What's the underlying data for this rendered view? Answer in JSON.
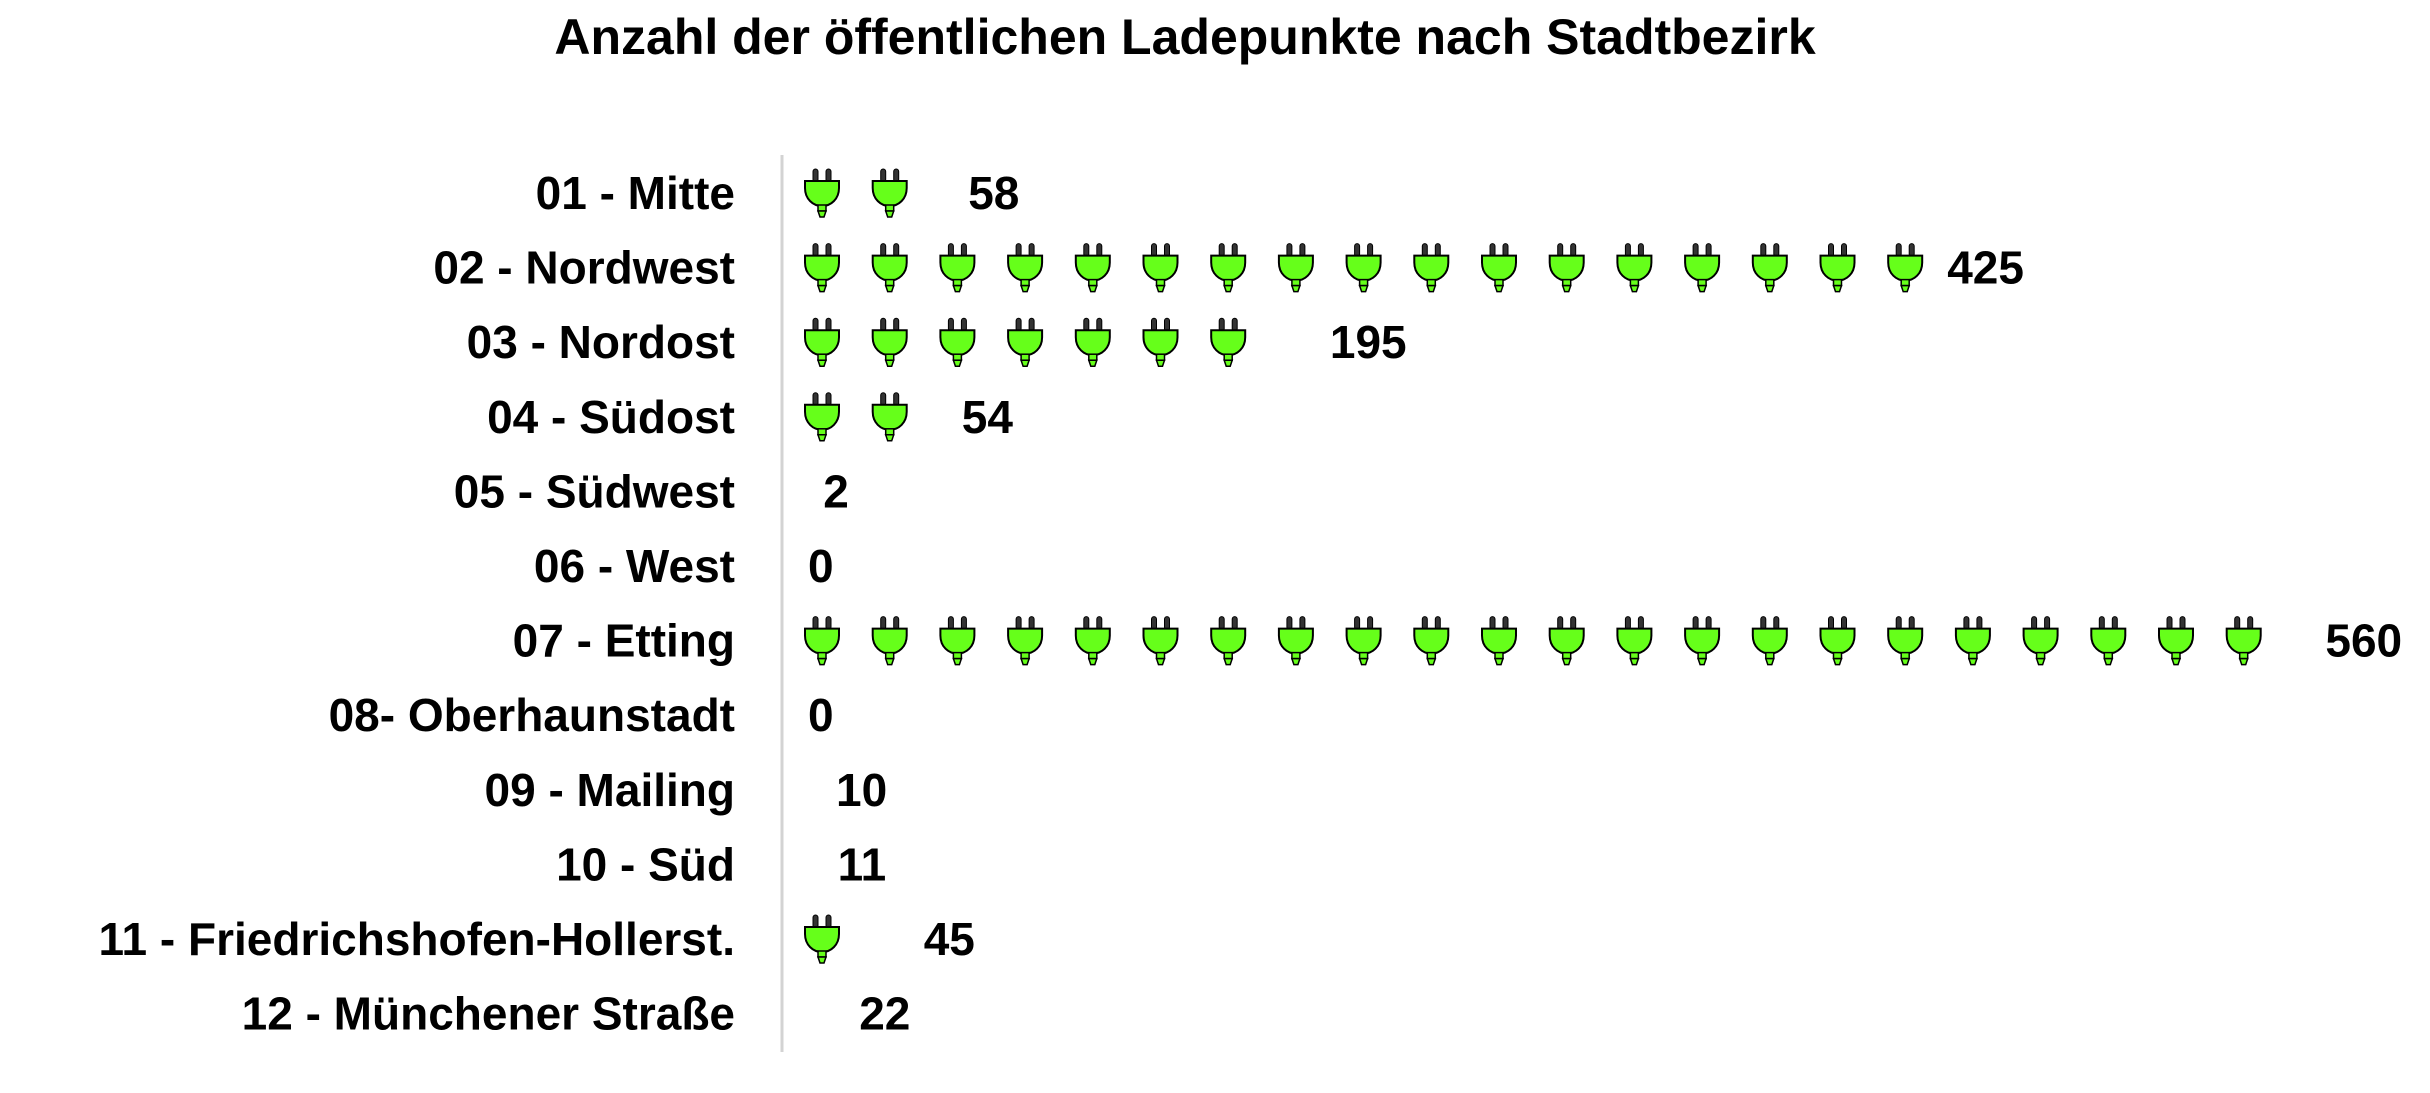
{
  "chart_data": {
    "type": "bar",
    "title": "Anzahl der öffentlichen Ladepunkte nach Stadtbezirk",
    "categories": [
      "01 - Mitte",
      "02 - Nordwest",
      "03 - Nordost",
      "04 - Südost",
      "05 - Südwest",
      "06 - West",
      "07 - Etting",
      "08- Oberhaunstadt",
      "09 - Mailing",
      "10 - Süd",
      "11 - Friedrichshofen-Hollerst.",
      "12 - Münchener Straße"
    ],
    "values": [
      58,
      425,
      195,
      54,
      2,
      0,
      560,
      0,
      10,
      11,
      45,
      22
    ],
    "value_labels": [
      "58",
      "425",
      "195",
      "54",
      "2",
      "0",
      "560",
      "0",
      "10",
      "11",
      "45",
      "22"
    ],
    "icon": "plug-icon",
    "icon_color": "#66ff1a",
    "xlabel": "",
    "ylabel": ""
  }
}
